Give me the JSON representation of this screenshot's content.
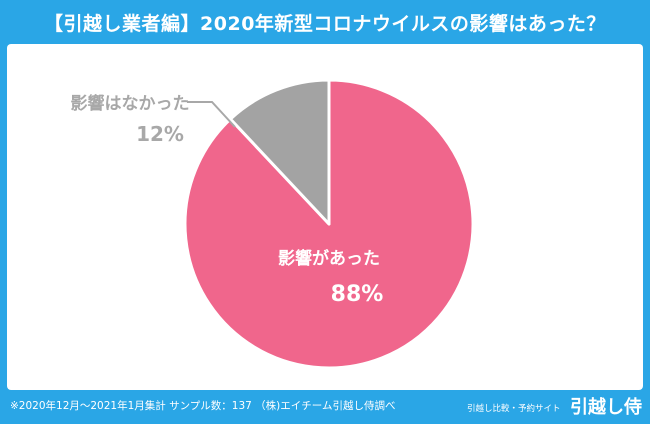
{
  "colors": {
    "frame": "#2aa6e6",
    "affected": "#f0668c",
    "not_affected": "#a3a3a3",
    "gray_label": "#a8a8a8",
    "white": "#ffffff"
  },
  "header": {
    "title": "【引越し業者編】2020年新型コロナウイルスの影響はあった？"
  },
  "footer": {
    "note": "※2020年12月〜2021年1月集計 サンプル数：137 （株)エイチーム引越し侍調べ",
    "brand_tagline": "引越し比較・予約サイト",
    "brand_logo": "引越し侍"
  },
  "chart_data": {
    "type": "pie",
    "title": "【引越し業者編】2020年新型コロナウイルスの影響はあった？",
    "slices": [
      {
        "label": "影響があった",
        "value": 88,
        "display": "88%",
        "color": "#f0668c"
      },
      {
        "label": "影響はなかった",
        "value": 12,
        "display": "12%",
        "color": "#a3a3a3"
      }
    ],
    "start_angle_deg": 0,
    "direction": "clockwise",
    "units": "%"
  }
}
